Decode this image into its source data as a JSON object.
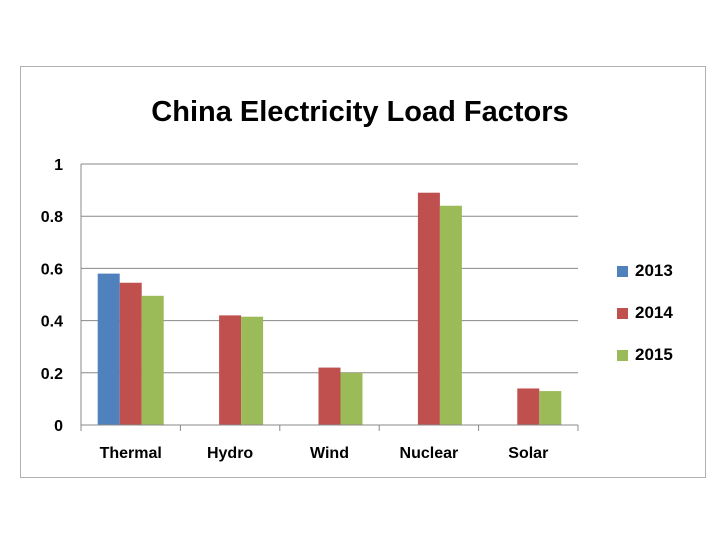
{
  "chart_data": {
    "type": "bar",
    "title": "China Electricity Load Factors",
    "xlabel": "",
    "ylabel": "",
    "categories": [
      "Thermal",
      "Hydro",
      "Wind",
      "Nuclear",
      "Solar"
    ],
    "series": [
      {
        "name": "2013",
        "color": "#4f81bd",
        "values": [
          0.58,
          null,
          null,
          null,
          null
        ]
      },
      {
        "name": "2014",
        "color": "#c0504d",
        "values": [
          0.545,
          0.42,
          0.22,
          0.89,
          0.14
        ]
      },
      {
        "name": "2015",
        "color": "#9bbb59",
        "values": [
          0.495,
          0.415,
          0.2,
          0.84,
          0.13
        ]
      }
    ],
    "ylim": [
      0,
      1
    ],
    "yticks": [
      0,
      0.2,
      0.4,
      0.6,
      0.8,
      1
    ],
    "ytick_labels": [
      "0",
      "0.2",
      "0.4",
      "0.6",
      "0.8",
      "1"
    ],
    "grid": true,
    "legend_position": "right"
  }
}
